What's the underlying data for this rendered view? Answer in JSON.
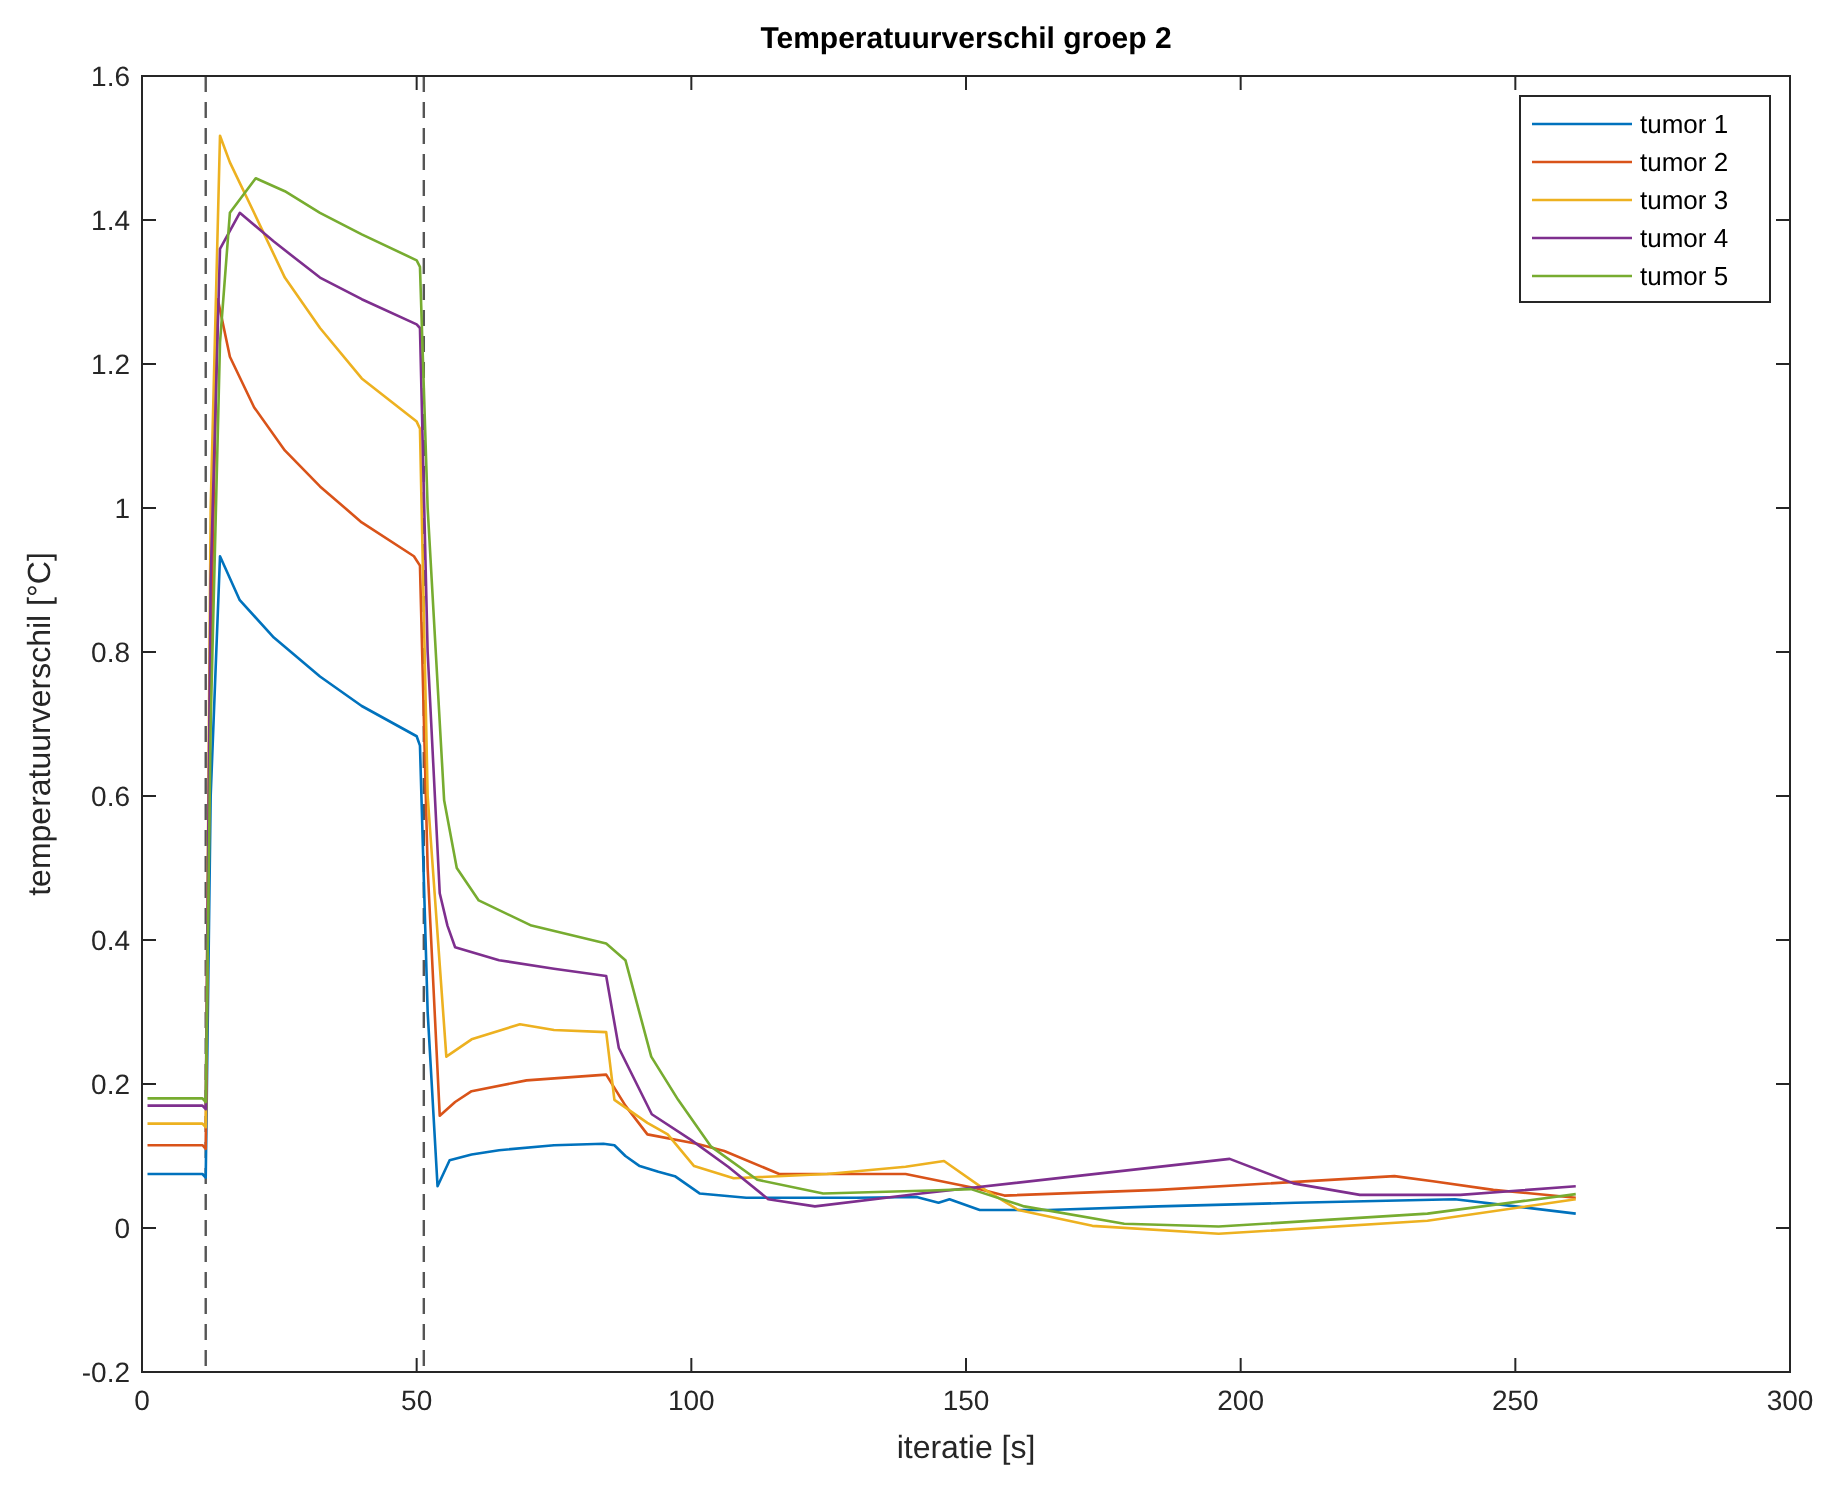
{
  "chart_data": {
    "type": "line",
    "title": "Temperatuurverschil groep 2",
    "xlabel": "iteratie [s]",
    "ylabel": "temperatuurverschil [°C]",
    "xlim": [
      0,
      300
    ],
    "xticks": [
      0,
      50,
      100,
      150,
      200,
      250,
      300
    ],
    "ylim": [
      -0.2,
      1.6
    ],
    "yticks": [
      -0.2,
      0,
      0.2,
      0.4,
      0.6,
      0.8,
      1,
      1.2,
      1.4,
      1.6
    ],
    "grid": false,
    "legend": "top right",
    "line_style": "solid",
    "marker": "none",
    "ref_lines": [
      {
        "axis": "x",
        "value": 11.6,
        "color": "#555555",
        "line_style": "dashed"
      },
      {
        "axis": "x",
        "value": 51.3,
        "color": "#555555",
        "line_style": "dashed"
      }
    ],
    "series": [
      {
        "name": "tumor 1",
        "color": "#0072bd",
        "x": [
          1,
          11,
          11.6,
          12.5,
          14.2,
          17.8,
          24,
          32.4,
          40,
          50,
          50.6,
          52,
          53.8,
          56,
          60,
          65,
          75,
          84,
          86,
          88,
          90.6,
          94,
          97,
          101.5,
          110,
          130,
          141,
          145,
          147,
          152.5,
          165,
          185,
          210,
          239,
          250,
          261
        ],
        "values": [
          0.075,
          0.075,
          0.07,
          0.6,
          0.933,
          0.872,
          0.82,
          0.766,
          0.725,
          0.683,
          0.67,
          0.3,
          0.058,
          0.094,
          0.102,
          0.108,
          0.115,
          0.117,
          0.115,
          0.1,
          0.086,
          0.078,
          0.072,
          0.048,
          0.042,
          0.042,
          0.043,
          0.035,
          0.04,
          0.025,
          0.025,
          0.03,
          0.035,
          0.04,
          0.03,
          0.02
        ]
      },
      {
        "name": "tumor 2",
        "color": "#d95319",
        "x": [
          1,
          11,
          11.6,
          12.5,
          13.8,
          16,
          20.4,
          26,
          32.4,
          40,
          49.5,
          50.6,
          52,
          54.2,
          57,
          60,
          70,
          84.5,
          88,
          92,
          101,
          106,
          116,
          139,
          152,
          157,
          185,
          228,
          235,
          246,
          261
        ],
        "values": [
          0.115,
          0.115,
          0.11,
          0.8,
          1.29,
          1.21,
          1.14,
          1.08,
          1.03,
          0.98,
          0.933,
          0.92,
          0.5,
          0.156,
          0.175,
          0.19,
          0.205,
          0.213,
          0.17,
          0.13,
          0.117,
          0.107,
          0.075,
          0.075,
          0.055,
          0.045,
          0.053,
          0.072,
          0.065,
          0.053,
          0.042
        ]
      },
      {
        "name": "tumor 3",
        "color": "#edb120",
        "x": [
          1,
          11,
          11.6,
          12.5,
          14.2,
          16,
          20.4,
          26,
          32.4,
          40,
          50,
          50.6,
          52,
          55.4,
          60,
          68.8,
          75,
          84.5,
          86,
          92,
          95.7,
          100.5,
          107.7,
          124.7,
          139,
          146,
          153.5,
          159.5,
          173,
          196,
          234,
          261
        ],
        "values": [
          0.145,
          0.145,
          0.14,
          1.0,
          1.517,
          1.48,
          1.41,
          1.32,
          1.25,
          1.18,
          1.12,
          1.11,
          0.6,
          0.238,
          0.262,
          0.283,
          0.275,
          0.272,
          0.178,
          0.146,
          0.13,
          0.086,
          0.069,
          0.075,
          0.085,
          0.093,
          0.053,
          0.025,
          0.003,
          -0.008,
          0.01,
          0.04
        ]
      },
      {
        "name": "tumor 4",
        "color": "#7e2f8e",
        "x": [
          1,
          11,
          11.6,
          12.5,
          14.2,
          17.8,
          24,
          32.4,
          40,
          50,
          50.6,
          52,
          54.2,
          55.6,
          57,
          65,
          75,
          84.5,
          86.8,
          92.8,
          100,
          106.7,
          114,
          122.5,
          141.8,
          170,
          198,
          209.6,
          221.7,
          240,
          261
        ],
        "values": [
          0.17,
          0.17,
          0.165,
          0.9,
          1.36,
          1.41,
          1.37,
          1.32,
          1.29,
          1.255,
          1.25,
          0.8,
          0.465,
          0.42,
          0.39,
          0.372,
          0.36,
          0.35,
          0.25,
          0.158,
          0.122,
          0.085,
          0.04,
          0.03,
          0.048,
          0.072,
          0.096,
          0.062,
          0.046,
          0.046,
          0.058
        ]
      },
      {
        "name": "tumor 5",
        "color": "#77ac30",
        "x": [
          1,
          11,
          11.6,
          12.5,
          14.2,
          16,
          20.7,
          26,
          32.4,
          40,
          50,
          50.6,
          52,
          55,
          57.3,
          61.3,
          70.9,
          84.5,
          88,
          92.7,
          97.6,
          103.6,
          112,
          124,
          143.6,
          150.9,
          160.6,
          178.8,
          196,
          234,
          261
        ],
        "values": [
          0.18,
          0.18,
          0.175,
          0.7,
          1.23,
          1.41,
          1.458,
          1.44,
          1.41,
          1.38,
          1.344,
          1.335,
          1.0,
          0.594,
          0.5,
          0.455,
          0.42,
          0.395,
          0.372,
          0.238,
          0.178,
          0.113,
          0.067,
          0.048,
          0.052,
          0.054,
          0.03,
          0.006,
          0.002,
          0.02,
          0.047
        ]
      }
    ]
  }
}
